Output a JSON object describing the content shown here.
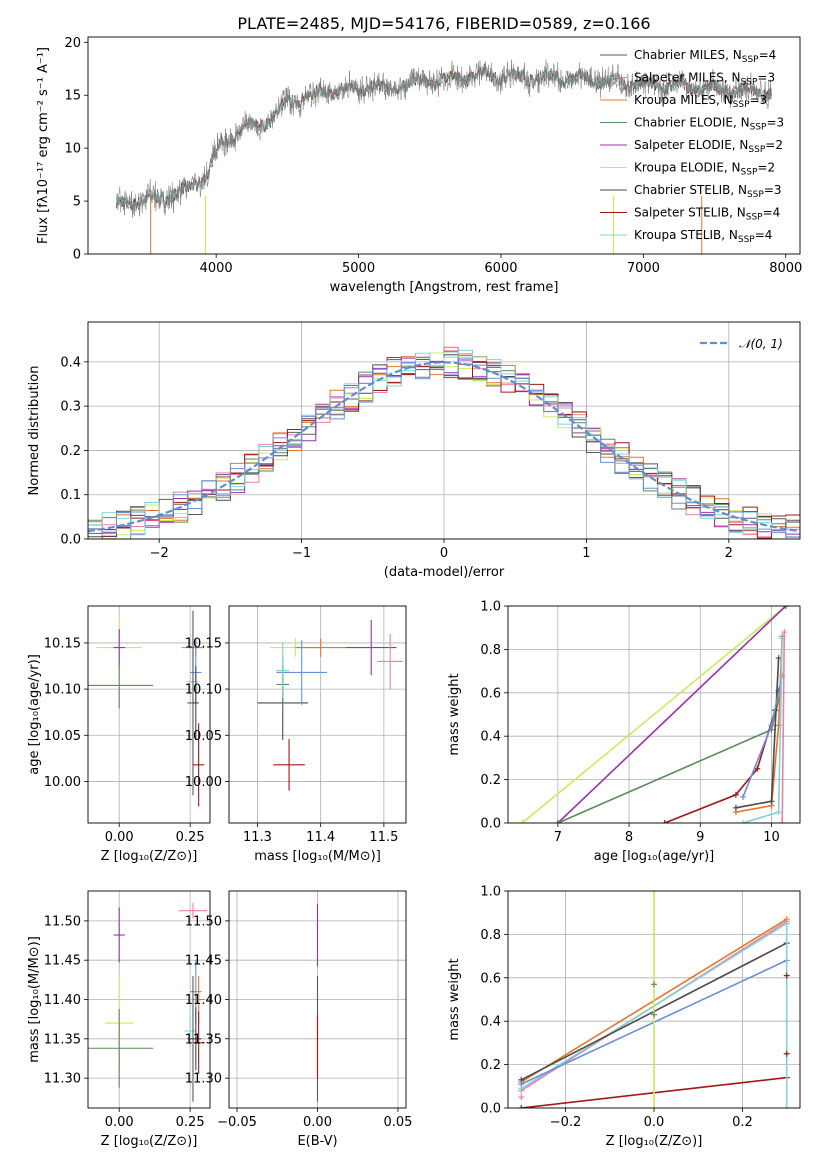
{
  "title": "PLATE=2485, MJD=54176, FIBERID=0589, z=0.166",
  "colors": {
    "Chabrier MILES": "#5a5a5a",
    "Salpeter MILES": "#f07ea6",
    "Kroupa MILES": "#e8742a",
    "Chabrier ELODIE": "#5d8a5d",
    "Salpeter ELODIE": "#9b30b0",
    "Kroupa ELODIE": "#cfe85a",
    "Chabrier STELIB": "#4a4a4a",
    "Salpeter STELIB": "#a01818",
    "Kroupa STELIB": "#7fd3d8",
    "normal": "#5b8fd6",
    "blue": "#6a8fd8"
  },
  "chart_data": [
    {
      "type": "line",
      "panel": "spectrum",
      "xlabel": "wavelength [Angstrom, rest frame]",
      "ylabel": "Flux [fλ10⁻¹⁷ erg cm⁻² s⁻¹ A⁻¹]",
      "xlim": [
        3100,
        8100
      ],
      "ylim": [
        0,
        20.5
      ],
      "xticks": [
        "4000",
        "5000",
        "6000",
        "7000",
        "8000"
      ],
      "yticks": [
        "0",
        "5",
        "10",
        "15",
        "20"
      ],
      "grid": false,
      "legend_position": "top-right",
      "series": [
        {
          "name": "Chabrier MILES, N_SSP=4",
          "legend_main": "Chabrier MILES, N",
          "legend_sub": "SSP",
          "legend_tail": "=4"
        },
        {
          "name": "Salpeter MILES, N_SSP=3",
          "legend_main": "Salpeter MILES, N",
          "legend_sub": "SSP",
          "legend_tail": "=3"
        },
        {
          "name": "Kroupa MILES, N_SSP=3",
          "legend_main": "Kroupa MILES, N",
          "legend_sub": "SSP",
          "legend_tail": "=3"
        },
        {
          "name": "Chabrier ELODIE, N_SSP=3",
          "legend_main": "Chabrier ELODIE, N",
          "legend_sub": "SSP",
          "legend_tail": "=3"
        },
        {
          "name": "Salpeter ELODIE, N_SSP=2",
          "legend_main": "Salpeter ELODIE, N",
          "legend_sub": "SSP",
          "legend_tail": "=2"
        },
        {
          "name": "Kroupa ELODIE, N_SSP=2",
          "legend_main": "Kroupa ELODIE, N",
          "legend_sub": "SSP",
          "legend_tail": "=2"
        },
        {
          "name": "Chabrier STELIB, N_SSP=3",
          "legend_main": "Chabrier STELIB, N",
          "legend_sub": "SSP",
          "legend_tail": "=3"
        },
        {
          "name": "Salpeter STELIB, N_SSP=4",
          "legend_main": "Salpeter STELIB, N",
          "legend_sub": "SSP",
          "legend_tail": "=4"
        },
        {
          "name": "Kroupa STELIB, N_SSP=4",
          "legend_main": "Kroupa STELIB, N",
          "legend_sub": "SSP",
          "legend_tail": "=4"
        }
      ],
      "continuum": {
        "x": [
          3300,
          3400,
          3500,
          3600,
          3700,
          3800,
          3900,
          3950,
          4000,
          4100,
          4200,
          4300,
          4400,
          4500,
          4600,
          4700,
          4800,
          4900,
          5000,
          5100,
          5200,
          5300,
          5400,
          5500,
          5600,
          5700,
          5800,
          5900,
          6000,
          6200,
          6400,
          6600,
          6800,
          7000,
          7200,
          7400,
          7600,
          7800,
          7900
        ],
        "y": [
          4.6,
          4.9,
          5.1,
          5.3,
          5.6,
          6.0,
          7.2,
          7.8,
          9.8,
          11.0,
          11.8,
          12.1,
          13.0,
          14.2,
          14.8,
          15.1,
          15.3,
          15.5,
          15.5,
          16.0,
          15.4,
          16.0,
          16.2,
          16.4,
          16.5,
          16.6,
          16.9,
          17.0,
          16.8,
          16.7,
          16.6,
          16.5,
          16.3,
          16.0,
          15.9,
          15.7,
          15.5,
          15.3,
          15.2
        ]
      }
    },
    {
      "type": "histogram",
      "panel": "residuals",
      "xlabel": "(data-model)/error",
      "ylabel": "Normed distribution",
      "xlim": [
        -2.5,
        2.5
      ],
      "ylim": [
        0,
        0.49
      ],
      "xticks": [
        "−2",
        "−1",
        "0",
        "1",
        "2"
      ],
      "yticks": [
        "0.0",
        "0.1",
        "0.2",
        "0.3",
        "0.4"
      ],
      "grid": true,
      "legend_position": "top-right",
      "legend": [
        "𝒩(0, 1)"
      ]
    },
    {
      "type": "scatter",
      "panel": "age-vs-Z",
      "xlabel": "Z [log₁₀(Z/Z⊙)]",
      "ylabel": "age  [log₁₀(age/yr)]",
      "xlim": [
        -0.11,
        0.32
      ],
      "ylim": [
        9.955,
        10.19
      ],
      "xticks": [
        "0.00",
        "0.25"
      ],
      "yticks": [
        "10.00",
        "10.05",
        "10.10",
        "10.15"
      ],
      "grid": true
    },
    {
      "type": "scatter",
      "panel": "age-vs-mass",
      "xlabel": "mass [log₁₀(M/M⊙)]",
      "ylabel": "",
      "xlim": [
        11.255,
        11.535
      ],
      "ylim": [
        9.955,
        10.19
      ],
      "xticks": [
        "11.3",
        "11.4",
        "11.5"
      ],
      "yticks": [
        "10.00",
        "10.05",
        "10.10",
        "10.15"
      ],
      "grid": true
    },
    {
      "type": "line",
      "panel": "weight-vs-age",
      "xlabel": "age  [log₁₀(age/yr)]",
      "ylabel": "mass weight",
      "xlim": [
        6.3,
        10.4
      ],
      "ylim": [
        0,
        1.0
      ],
      "xticks": [
        "7",
        "8",
        "9",
        "10"
      ],
      "yticks": [
        "0.0",
        "0.2",
        "0.4",
        "0.6",
        "0.8",
        "1.0"
      ],
      "grid": true
    },
    {
      "type": "scatter",
      "panel": "mass-vs-Z",
      "xlabel": "Z [log₁₀(Z/Z⊙)]",
      "ylabel": "mass [log₁₀(M/M⊙)]",
      "xlim": [
        -0.11,
        0.32
      ],
      "ylim": [
        11.262,
        11.538
      ],
      "xticks": [
        "0.00",
        "0.25"
      ],
      "yticks": [
        "11.30",
        "11.35",
        "11.40",
        "11.45",
        "11.50"
      ],
      "grid": true
    },
    {
      "type": "scatter",
      "panel": "mass-vs-ebv",
      "xlabel": "E(B-V)",
      "ylabel": "",
      "xlim": [
        -0.055,
        0.055
      ],
      "ylim": [
        11.262,
        11.538
      ],
      "xticks": [
        "−0.05",
        "0.00",
        "0.05"
      ],
      "yticks": [
        "11.30",
        "11.35",
        "11.40",
        "11.45",
        "11.50"
      ],
      "grid": true
    },
    {
      "type": "line",
      "panel": "weight-vs-Z",
      "xlabel": "Z [log₁₀(Z/Z⊙)]",
      "ylabel": "mass weight",
      "xlim": [
        -0.33,
        0.33
      ],
      "ylim": [
        0,
        1.0
      ],
      "xticks": [
        "−0.2",
        "0.0",
        "0.2"
      ],
      "yticks": [
        "0.0",
        "0.2",
        "0.4",
        "0.6",
        "0.8",
        "1.0"
      ],
      "grid": true
    }
  ]
}
